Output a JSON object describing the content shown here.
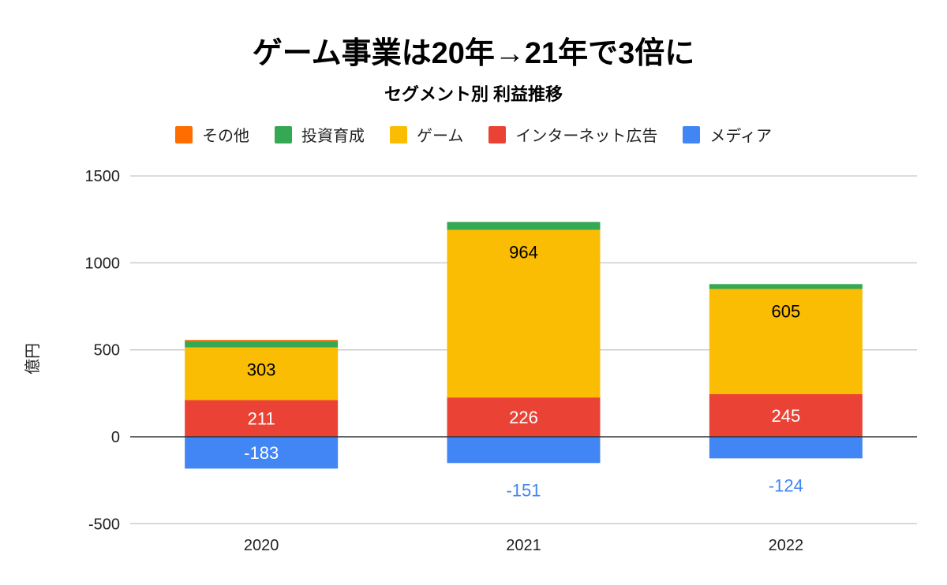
{
  "chart_data": {
    "type": "bar",
    "stacked": true,
    "title": "ゲーム事業は20年→21年で3倍に",
    "subtitle": "セグメント別 利益推移",
    "xlabel": "",
    "ylabel": "億円",
    "ylim": [
      -500,
      1500
    ],
    "yticks": [
      -500,
      0,
      500,
      1000,
      1500
    ],
    "grid": true,
    "legend_position": "top",
    "categories": [
      "2020",
      "2021",
      "2022"
    ],
    "series": [
      {
        "name": "メディア",
        "color": "#4285f4",
        "values": [
          -183,
          -151,
          -124
        ],
        "labels_shown": true
      },
      {
        "name": "インターネット広告",
        "color": "#ea4335",
        "values": [
          211,
          226,
          245
        ],
        "labels_shown": true
      },
      {
        "name": "ゲーム",
        "color": "#fbbc04",
        "values": [
          303,
          964,
          605
        ],
        "labels_shown": true
      },
      {
        "name": "投資育成",
        "color": "#34a853",
        "values": [
          36,
          45,
          28
        ],
        "labels_shown": false
      },
      {
        "name": "その他",
        "color": "#ff6d01",
        "values": [
          7,
          0,
          0
        ],
        "labels_shown": false
      }
    ],
    "legend_order": [
      "その他",
      "投資育成",
      "ゲーム",
      "インターネット広告",
      "メディア"
    ]
  }
}
